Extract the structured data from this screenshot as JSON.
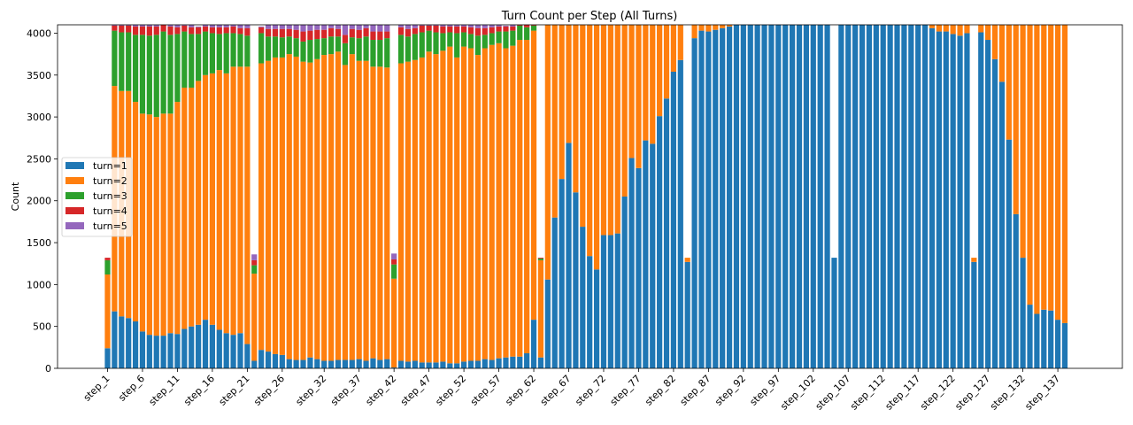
{
  "chart_data": {
    "type": "bar",
    "stacked": true,
    "title": "Turn Count per Step (All Turns)",
    "xlabel": "",
    "ylabel": "Count",
    "ylim": [
      0,
      4100
    ],
    "yticks": [
      0,
      500,
      1000,
      1500,
      2000,
      2500,
      3000,
      3500,
      4000
    ],
    "grid": false,
    "legend_position": "center-left",
    "categories": [
      "step_1",
      "step_2",
      "step_3",
      "step_4",
      "step_5",
      "step_6",
      "step_7",
      "step_8",
      "step_9",
      "step_10",
      "step_11",
      "step_12",
      "step_13",
      "step_14",
      "step_15",
      "step_16",
      "step_17",
      "step_18",
      "step_19",
      "step_20",
      "step_21",
      "step_22",
      "step_23",
      "step_24",
      "step_25",
      "step_26",
      "step_27",
      "step_28",
      "step_29",
      "step_30",
      "step_31",
      "step_32",
      "step_33",
      "step_34",
      "step_35",
      "step_36",
      "step_37",
      "step_38",
      "step_39",
      "step_40",
      "step_41",
      "step_42",
      "step_43",
      "step_44",
      "step_45",
      "step_46",
      "step_47",
      "step_48",
      "step_49",
      "step_50",
      "step_51",
      "step_52",
      "step_53",
      "step_54",
      "step_55",
      "step_56",
      "step_57",
      "step_58",
      "step_59",
      "step_60",
      "step_61",
      "step_62",
      "step_63",
      "step_64",
      "step_65",
      "step_66",
      "step_67",
      "step_68",
      "step_69",
      "step_70",
      "step_71",
      "step_72",
      "step_73",
      "step_74",
      "step_75",
      "step_76",
      "step_77",
      "step_78",
      "step_79",
      "step_80",
      "step_81",
      "step_82",
      "step_83",
      "step_84",
      "step_85",
      "step_86",
      "step_87",
      "step_88",
      "step_89",
      "step_90",
      "step_91",
      "step_92",
      "step_93",
      "step_94",
      "step_95",
      "step_96",
      "step_97",
      "step_98",
      "step_99",
      "step_100",
      "step_101",
      "step_102",
      "step_103",
      "step_104",
      "step_105",
      "step_106",
      "step_107",
      "step_108",
      "step_109",
      "step_110",
      "step_111",
      "step_112",
      "step_113",
      "step_114",
      "step_115",
      "step_116",
      "step_117",
      "step_118",
      "step_119",
      "step_120",
      "step_121",
      "step_122",
      "step_123",
      "step_124",
      "step_125",
      "step_126",
      "step_127",
      "step_128",
      "step_129",
      "step_130",
      "step_131",
      "step_132",
      "step_133",
      "step_134",
      "step_135",
      "step_136",
      "step_137",
      "step_138"
    ],
    "xtick_labels": [
      "step_1",
      "step_6",
      "step_11",
      "step_16",
      "step_21",
      "step_26",
      "step_32",
      "step_37",
      "step_42",
      "step_47",
      "step_52",
      "step_57",
      "step_62",
      "step_67",
      "step_72",
      "step_77",
      "step_82",
      "step_87",
      "step_92",
      "step_97",
      "step_102",
      "step_107",
      "step_112",
      "step_117",
      "step_122",
      "step_127",
      "step_132",
      "step_137"
    ],
    "series": [
      {
        "name": "turn=1",
        "color": "#1f77b4",
        "values": [
          240,
          680,
          620,
          600,
          560,
          440,
          400,
          390,
          390,
          420,
          410,
          470,
          500,
          520,
          580,
          520,
          460,
          420,
          400,
          420,
          290,
          90,
          220,
          200,
          170,
          160,
          110,
          100,
          100,
          130,
          110,
          90,
          90,
          100,
          100,
          100,
          110,
          90,
          120,
          100,
          110,
          10,
          90,
          80,
          90,
          70,
          70,
          70,
          80,
          60,
          60,
          80,
          90,
          90,
          110,
          100,
          120,
          130,
          140,
          140,
          180,
          580,
          130,
          1060,
          1800,
          2260,
          2690,
          2100,
          1690,
          1340,
          1180,
          1590,
          1590,
          1610,
          2050,
          2510,
          2390,
          2720,
          2680,
          3010,
          3220,
          3540,
          3680,
          1270,
          3940,
          4030,
          4020,
          4040,
          4060,
          4080,
          4100,
          4100,
          4100,
          4100,
          4100,
          4100,
          4100,
          4100,
          4100,
          4100,
          4100,
          4100,
          4100,
          4100,
          1320,
          4100,
          4100,
          4100,
          4100,
          4100,
          4100,
          4100,
          4100,
          4100,
          4100,
          4100,
          4100,
          4100,
          4060,
          4020,
          4020,
          3990,
          3970,
          4000,
          1270,
          4010,
          3920,
          3690,
          3420,
          2730,
          1840,
          1320,
          760,
          650,
          700,
          690,
          580,
          540
        ]
      },
      {
        "name": "turn=2",
        "color": "#ff7f0e",
        "values": [
          880,
          2690,
          2690,
          2710,
          2620,
          2600,
          2630,
          2610,
          2650,
          2620,
          2770,
          2880,
          2850,
          2910,
          2920,
          3000,
          3100,
          3100,
          3200,
          3180,
          3310,
          1040,
          3420,
          3470,
          3540,
          3550,
          3640,
          3620,
          3560,
          3520,
          3580,
          3650,
          3660,
          3680,
          3520,
          3650,
          3560,
          3580,
          3480,
          3500,
          3480,
          1060,
          3550,
          3580,
          3590,
          3640,
          3710,
          3680,
          3710,
          3780,
          3650,
          3760,
          3730,
          3650,
          3710,
          3760,
          3760,
          3690,
          3710,
          3780,
          3740,
          3450,
          1160,
          3040,
          2300,
          1840,
          1410,
          2000,
          2410,
          2760,
          2920,
          2510,
          2510,
          2490,
          2050,
          1590,
          1710,
          1380,
          1420,
          1090,
          880,
          560,
          420,
          50,
          160,
          70,
          80,
          60,
          40,
          20,
          0,
          0,
          0,
          0,
          0,
          0,
          0,
          0,
          0,
          0,
          0,
          0,
          0,
          0,
          0,
          0,
          0,
          0,
          0,
          0,
          0,
          0,
          0,
          0,
          0,
          0,
          0,
          0,
          40,
          80,
          80,
          110,
          130,
          100,
          50,
          90,
          180,
          410,
          680,
          1370,
          2260,
          2780,
          3340,
          3450,
          3400,
          3410,
          3520,
          3560
        ]
      },
      {
        "name": "turn=3",
        "color": "#2ca02c",
        "values": [
          170,
          660,
          700,
          700,
          800,
          940,
          940,
          980,
          980,
          940,
          810,
          670,
          640,
          560,
          520,
          480,
          430,
          480,
          400,
          390,
          370,
          100,
          360,
          290,
          250,
          240,
          210,
          220,
          240,
          270,
          240,
          200,
          210,
          180,
          260,
          200,
          270,
          290,
          320,
          320,
          350,
          170,
          340,
          300,
          310,
          300,
          250,
          260,
          210,
          170,
          290,
          170,
          170,
          230,
          160,
          140,
          140,
          200,
          180,
          170,
          150,
          60,
          20,
          10,
          0,
          0,
          0,
          0,
          0,
          0,
          0,
          0,
          0,
          0,
          0,
          0,
          0,
          0,
          0,
          0,
          0,
          0,
          0,
          0,
          0,
          0,
          0,
          0,
          0,
          0,
          0,
          0,
          0,
          0,
          0,
          0,
          0,
          0,
          0,
          0,
          0,
          0,
          0,
          0,
          0,
          0,
          0,
          0,
          0,
          0,
          0,
          0,
          0,
          0,
          0,
          0,
          0,
          0,
          0,
          0,
          0,
          0,
          0,
          0,
          0,
          0,
          0,
          0,
          0,
          0,
          0,
          0,
          0,
          0,
          0,
          0,
          0,
          0
        ]
      },
      {
        "name": "turn=4",
        "color": "#d62728",
        "values": [
          30,
          60,
          80,
          80,
          100,
          100,
          110,
          100,
          90,
          100,
          80,
          70,
          80,
          80,
          60,
          70,
          80,
          70,
          80,
          70,
          90,
          60,
          70,
          90,
          90,
          100,
          90,
          100,
          120,
          110,
          110,
          100,
          100,
          90,
          100,
          100,
          100,
          100,
          100,
          100,
          80,
          60,
          90,
          90,
          70,
          80,
          60,
          80,
          80,
          70,
          80,
          70,
          80,
          90,
          80,
          70,
          60,
          60,
          50,
          50,
          50,
          10,
          10,
          0,
          0,
          0,
          0,
          0,
          0,
          0,
          0,
          0,
          0,
          0,
          0,
          0,
          0,
          0,
          0,
          0,
          0,
          0,
          0,
          0,
          0,
          0,
          0,
          0,
          0,
          0,
          0,
          0,
          0,
          0,
          0,
          0,
          0,
          0,
          0,
          0,
          0,
          0,
          0,
          0,
          0,
          0,
          0,
          0,
          0,
          0,
          0,
          0,
          0,
          0,
          0,
          0,
          0,
          0,
          0,
          0,
          0,
          0,
          0,
          0,
          0,
          0,
          0,
          0,
          0,
          0,
          0,
          0,
          0,
          0,
          0,
          0,
          0,
          0
        ]
      },
      {
        "name": "turn=5",
        "color": "#9467bd",
        "values": [
          0,
          10,
          10,
          10,
          20,
          20,
          20,
          20,
          10,
          20,
          30,
          10,
          30,
          10,
          20,
          30,
          30,
          30,
          20,
          40,
          40,
          70,
          10,
          50,
          50,
          60,
          50,
          60,
          80,
          70,
          70,
          60,
          40,
          50,
          120,
          50,
          60,
          40,
          80,
          80,
          80,
          70,
          30,
          50,
          40,
          10,
          10,
          10,
          30,
          20,
          20,
          20,
          30,
          40,
          40,
          30,
          20,
          10,
          20,
          0,
          0,
          0,
          0,
          0,
          0,
          0,
          0,
          0,
          0,
          0,
          0,
          0,
          0,
          0,
          0,
          0,
          0,
          0,
          0,
          0,
          0,
          0,
          0,
          0,
          0,
          0,
          0,
          0,
          0,
          0,
          0,
          0,
          0,
          0,
          0,
          0,
          0,
          0,
          0,
          0,
          0,
          0,
          0,
          0,
          0,
          0,
          0,
          0,
          0,
          0,
          0,
          0,
          0,
          0,
          0,
          0,
          0,
          0,
          0,
          0,
          0,
          0,
          0,
          0,
          0,
          0,
          0,
          0,
          0,
          0,
          0,
          0,
          0,
          0,
          0,
          0,
          0,
          0
        ]
      }
    ]
  }
}
